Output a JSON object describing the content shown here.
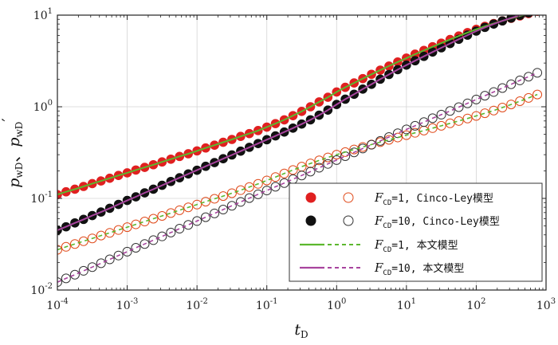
{
  "chart_data": {
    "type": "scatter",
    "title": "",
    "xlabel": "t_D",
    "ylabel": "p_wD、p_wD′",
    "xscale": "log",
    "yscale": "log",
    "xlim": [
      0.0001,
      1000
    ],
    "ylim": [
      0.01,
      10
    ],
    "grid": true,
    "x_tick_values": [
      0.0001,
      0.001,
      0.01,
      0.1,
      1,
      10,
      100,
      1000
    ],
    "y_tick_values": [
      0.01,
      0.1,
      1,
      10
    ],
    "x_tick_labels": [
      {
        "base": "10",
        "exp": "-4"
      },
      {
        "base": "10",
        "exp": "-3"
      },
      {
        "base": "10",
        "exp": "-2"
      },
      {
        "base": "10",
        "exp": "-1"
      },
      {
        "base": "10",
        "exp": "0"
      },
      {
        "base": "10",
        "exp": "1"
      },
      {
        "base": "10",
        "exp": "2"
      },
      {
        "base": "10",
        "exp": "3"
      }
    ],
    "y_tick_labels": [
      {
        "base": "10",
        "exp": "-2"
      },
      {
        "base": "10",
        "exp": "-1"
      },
      {
        "base": "10",
        "exp": "0"
      },
      {
        "base": "10",
        "exp": "1"
      }
    ],
    "axis_titles": {
      "x_main": "t",
      "x_sub": "D",
      "y_p1": "p",
      "y_sub1": "wD",
      "y_sep": "、",
      "y_p2": "p",
      "y_sub2": "wD",
      "y_prime": "′"
    },
    "x": [
      0.0001,
      0.000133,
      0.000178,
      0.000237,
      0.000316,
      0.000422,
      0.000562,
      0.00075,
      0.001,
      0.00133,
      0.00178,
      0.00237,
      0.00316,
      0.00422,
      0.00562,
      0.0075,
      0.01,
      0.0133,
      0.0178,
      0.0237,
      0.0316,
      0.0422,
      0.0562,
      0.075,
      0.1,
      0.133,
      0.178,
      0.237,
      0.316,
      0.422,
      0.562,
      0.75,
      1,
      1.33,
      1.78,
      2.37,
      3.16,
      4.22,
      5.62,
      7.5,
      10,
      13.3,
      17.8,
      23.7,
      31.6,
      42.2,
      56.2,
      75,
      100,
      133,
      178,
      237,
      316,
      422,
      562,
      750
    ],
    "series": [
      {
        "name": "FCD=1 pwD (Cinco-Ley)",
        "marker": "filled-circle",
        "color": "#e02020",
        "values": [
          0.11,
          0.118,
          0.126,
          0.135,
          0.145,
          0.155,
          0.166,
          0.178,
          0.19,
          0.204,
          0.218,
          0.233,
          0.25,
          0.268,
          0.287,
          0.307,
          0.33,
          0.355,
          0.381,
          0.41,
          0.44,
          0.475,
          0.51,
          0.55,
          0.6,
          0.655,
          0.72,
          0.8,
          0.89,
          1.0,
          1.13,
          1.27,
          1.45,
          1.63,
          1.82,
          2.03,
          2.26,
          2.51,
          2.78,
          3.08,
          3.4,
          3.75,
          4.12,
          4.52,
          4.95,
          5.42,
          5.92,
          6.45,
          7.0,
          7.55,
          8.1,
          8.66,
          9.23,
          9.8,
          10.4,
          11.0
        ]
      },
      {
        "name": "FCD=1 pwD′ (Cinco-Ley)",
        "marker": "open-circle",
        "color": "#e04a1a",
        "values": [
          0.0275,
          0.0296,
          0.0318,
          0.0341,
          0.0366,
          0.0393,
          0.0421,
          0.0452,
          0.0485,
          0.0521,
          0.0559,
          0.06,
          0.0644,
          0.0692,
          0.0743,
          0.0798,
          0.0857,
          0.0921,
          0.099,
          0.106,
          0.114,
          0.123,
          0.133,
          0.144,
          0.157,
          0.171,
          0.187,
          0.204,
          0.222,
          0.241,
          0.26,
          0.28,
          0.3,
          0.32,
          0.342,
          0.364,
          0.387,
          0.411,
          0.436,
          0.462,
          0.49,
          0.52,
          0.55,
          0.585,
          0.62,
          0.66,
          0.7,
          0.745,
          0.795,
          0.85,
          0.91,
          0.98,
          1.06,
          1.15,
          1.25,
          1.36
        ]
      },
      {
        "name": "FCD=10 pwD (Cinco-Ley)",
        "marker": "filled-circle",
        "color": "#111111",
        "values": [
          0.045,
          0.049,
          0.054,
          0.059,
          0.065,
          0.071,
          0.078,
          0.086,
          0.095,
          0.104,
          0.115,
          0.126,
          0.139,
          0.153,
          0.168,
          0.185,
          0.203,
          0.224,
          0.246,
          0.271,
          0.298,
          0.328,
          0.361,
          0.397,
          0.437,
          0.481,
          0.53,
          0.585,
          0.648,
          0.72,
          0.81,
          0.92,
          1.06,
          1.21,
          1.37,
          1.56,
          1.76,
          2.0,
          2.25,
          2.54,
          2.85,
          3.18,
          3.55,
          3.96,
          4.4,
          4.9,
          5.45,
          6.05,
          6.7,
          7.35,
          8.0,
          8.65,
          9.3,
          9.95,
          10.6,
          11.3
        ]
      },
      {
        "name": "FCD=10 pwD′ (Cinco-Ley)",
        "marker": "open-circle",
        "color": "#333333",
        "values": [
          0.0122,
          0.0134,
          0.0147,
          0.0162,
          0.0178,
          0.0196,
          0.0216,
          0.0238,
          0.0262,
          0.0289,
          0.0318,
          0.035,
          0.0385,
          0.0424,
          0.0467,
          0.0514,
          0.0566,
          0.0623,
          0.0686,
          0.0755,
          0.0831,
          0.0915,
          0.1007,
          0.1109,
          0.122,
          0.134,
          0.147,
          0.162,
          0.178,
          0.196,
          0.216,
          0.238,
          0.262,
          0.289,
          0.318,
          0.35,
          0.385,
          0.424,
          0.467,
          0.514,
          0.566,
          0.62,
          0.68,
          0.75,
          0.82,
          0.9,
          0.99,
          1.09,
          1.2,
          1.32,
          1.45,
          1.6,
          1.76,
          1.94,
          2.13,
          2.35
        ]
      },
      {
        "name": "FCD=1 本文模型",
        "line": "solid+dashed",
        "color": "#5cb82e"
      },
      {
        "name": "FCD=10 本文模型",
        "line": "solid+dashed",
        "color": "#a8449e"
      }
    ],
    "legend": {
      "placement": "lower-right",
      "entries": [
        {
          "sym": "F",
          "sub": "CD",
          "text": "=1, Cinco-Ley模型",
          "marker_left": "filled",
          "marker_right": "open",
          "left_color": "#e02020",
          "right_color": "#e04a1a"
        },
        {
          "sym": "F",
          "sub": "CD",
          "text": "=10, Cinco-Ley模型",
          "marker_left": "filled",
          "marker_right": "open",
          "left_color": "#111111",
          "right_color": "#333333"
        },
        {
          "sym": "F",
          "sub": "CD",
          "text": "=1, 本文模型",
          "line": true,
          "color": "#5cb82e"
        },
        {
          "sym": "F",
          "sub": "CD",
          "text": "=10, 本文模型",
          "line": true,
          "color": "#a8449e"
        }
      ]
    }
  }
}
